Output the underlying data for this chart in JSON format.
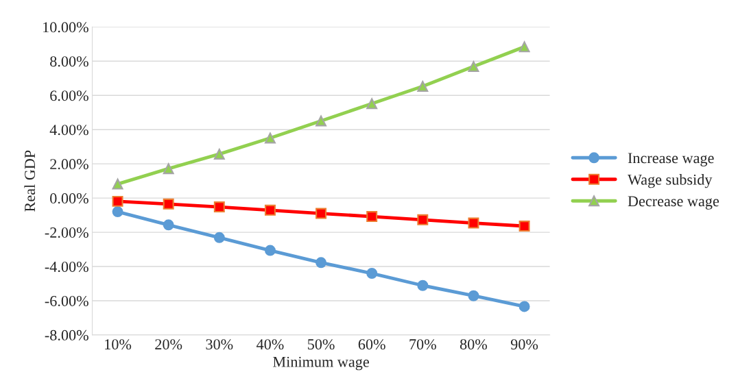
{
  "chart_data": {
    "type": "line",
    "xlabel": "Minimum wage",
    "ylabel": "Real GDP",
    "categories": [
      "10%",
      "20%",
      "30%",
      "40%",
      "50%",
      "60%",
      "70%",
      "80%",
      "90%"
    ],
    "series": [
      {
        "name": "Increase wage",
        "color": "#5b9bd5",
        "marker": "circle",
        "values": [
          -0.8,
          -1.57,
          -2.31,
          -3.06,
          -3.77,
          -4.4,
          -5.11,
          -5.71,
          -6.34
        ]
      },
      {
        "name": "Wage subsidy",
        "color": "#ff0000",
        "marker": "square",
        "values": [
          -0.19,
          -0.35,
          -0.52,
          -0.71,
          -0.9,
          -1.08,
          -1.27,
          -1.46,
          -1.64
        ]
      },
      {
        "name": "Decrease wage",
        "color": "#92d050",
        "marker": "triangle",
        "values": [
          0.82,
          1.72,
          2.57,
          3.51,
          4.51,
          5.52,
          6.53,
          7.69,
          8.84
        ]
      }
    ],
    "ylim": [
      -8,
      10
    ],
    "yticks": [
      {
        "value": -8,
        "label": "-8.00%"
      },
      {
        "value": -6,
        "label": "-6.00%"
      },
      {
        "value": -4,
        "label": "-4.00%"
      },
      {
        "value": -2,
        "label": "-2.00%"
      },
      {
        "value": 0,
        "label": "0.00%"
      },
      {
        "value": 2,
        "label": "2.00%"
      },
      {
        "value": 4,
        "label": "4.00%"
      },
      {
        "value": 6,
        "label": "6.00%"
      },
      {
        "value": 8,
        "label": "8.00%"
      },
      {
        "value": 10,
        "label": "10.00%"
      }
    ],
    "grid": "y",
    "legend": "right",
    "line_style": "solid"
  }
}
